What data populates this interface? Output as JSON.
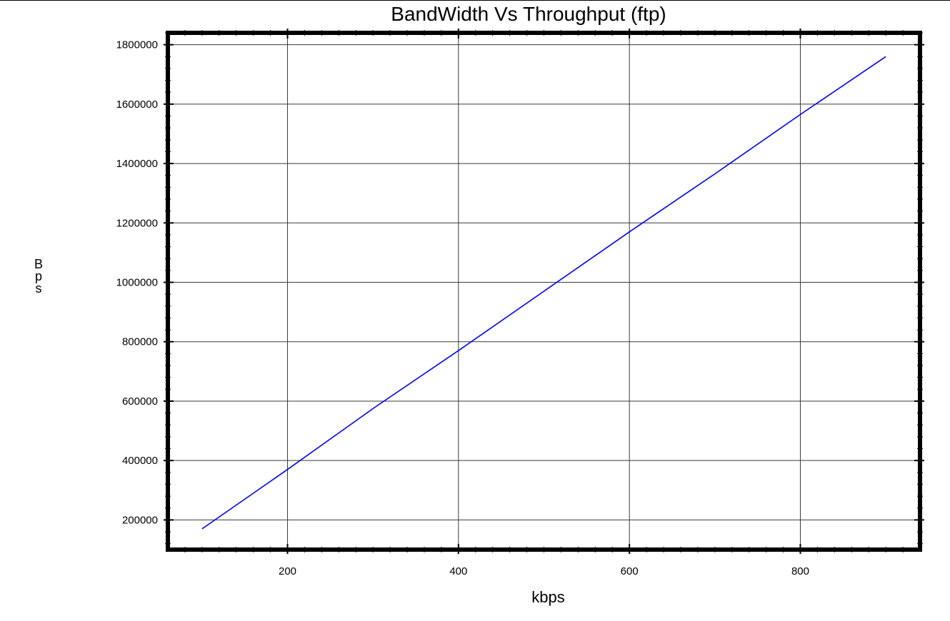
{
  "chart_data": {
    "type": "line",
    "title": "BandWidth Vs Throughput (ftp)",
    "xlabel": "kbps",
    "ylabel": "Bps",
    "xlim": [
      60,
      940
    ],
    "ylim": [
      100000,
      1840000
    ],
    "xticks": [
      200,
      400,
      600,
      800
    ],
    "xtick_labels": [
      "200",
      "400",
      "600",
      "800"
    ],
    "yticks": [
      200000,
      400000,
      600000,
      800000,
      1000000,
      1200000,
      1400000,
      1600000,
      1800000
    ],
    "ytick_labels": [
      "200000",
      "400000",
      "600000",
      "800000",
      "1000000",
      "1200000",
      "1400000",
      "1600000",
      "1800000"
    ],
    "grid": true,
    "series": [
      {
        "color": "#0000ff",
        "x": [
          100,
          200,
          300,
          400,
          500,
          600,
          700,
          800,
          900
        ],
        "y": [
          170000,
          370000,
          575000,
          770000,
          970000,
          1170000,
          1365000,
          1565000,
          1760000
        ]
      }
    ]
  }
}
